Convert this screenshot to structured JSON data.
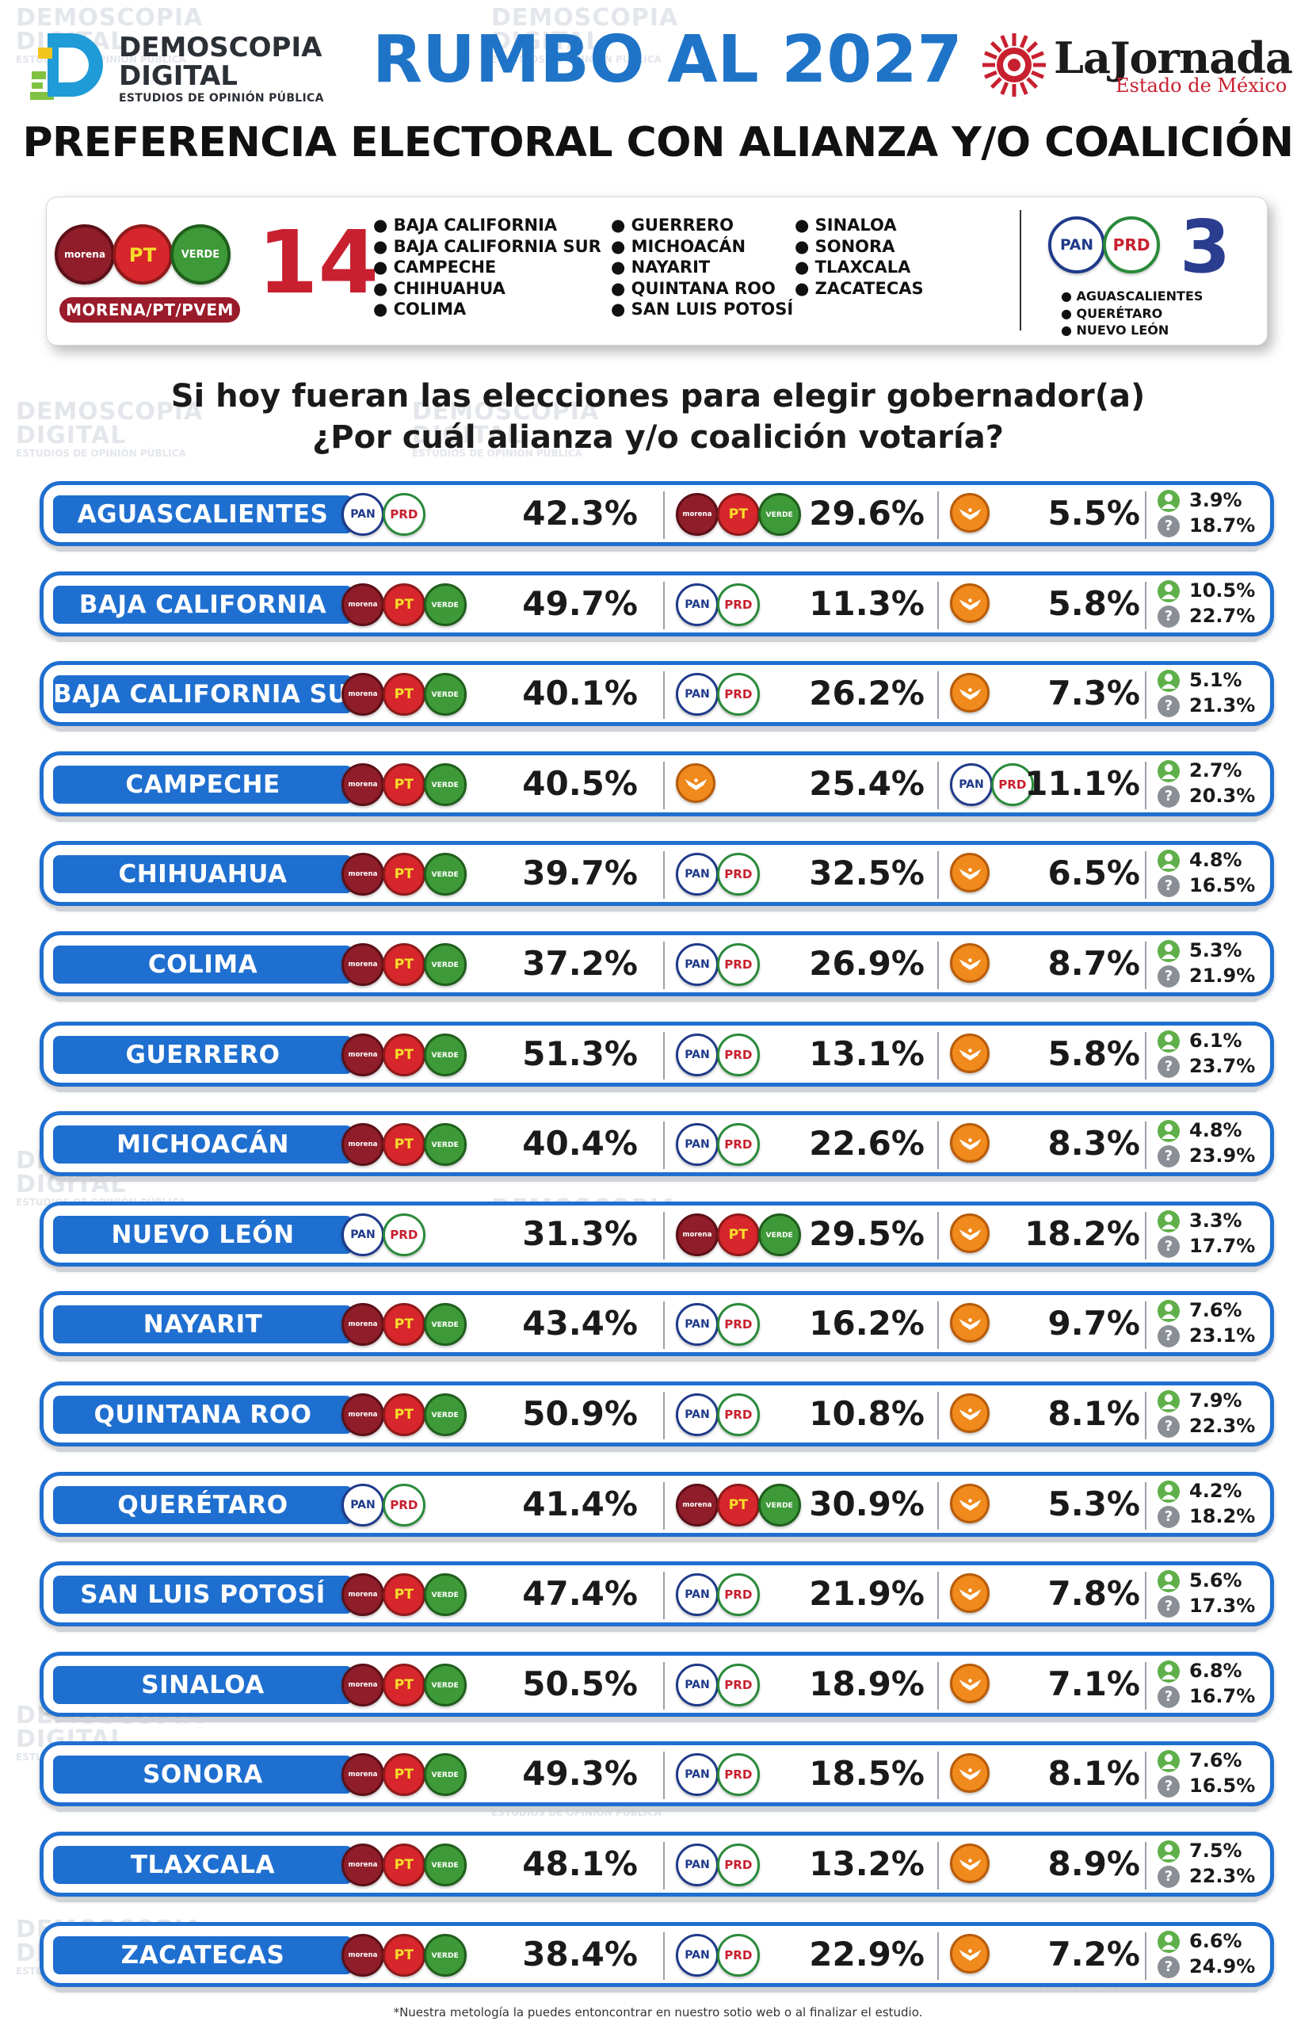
{
  "brand": {
    "name_line1": "DEMOSCOPIA",
    "name_line2": "DIGITAL",
    "tagline": "ESTUDIOS DE OPINIÓN PÚBLICA"
  },
  "title": "RUMBO AL 2027",
  "newspaper": {
    "name": "LaJornada",
    "region": "Estado de México"
  },
  "subtitle": "PREFERENCIA ELECTORAL CON ALIANZA Y/O COALICIÓN",
  "summary": {
    "left_alliance_label": "MORENA/PT/PVEM",
    "left_count": "14",
    "left_states_col1": [
      "BAJA CALIFORNIA",
      "BAJA CALIFORNIA SUR",
      "CAMPECHE",
      "CHIHUAHUA",
      "COLIMA"
    ],
    "left_states_col2": [
      "GUERRERO",
      "MICHOACÁN",
      "NAYARIT",
      "QUINTANA ROO",
      "SAN LUIS POTOSÍ"
    ],
    "left_states_col3": [
      "SINALOA",
      "SONORA",
      "TLAXCALA",
      "ZACATECAS"
    ],
    "right_count": "3",
    "right_states": [
      "AGUASCALIENTES",
      "QUERÉTARO",
      "NUEVO LEÓN"
    ]
  },
  "question_line1": "Si hoy fueran las elecciones para elegir gobernador(a)",
  "question_line2": "¿Por cuál alianza y/o coalición votaría?",
  "logo_text": {
    "morena": "morena",
    "pt": "PT",
    "verde": "VERDE",
    "pan": "PAN",
    "prd": "PRD"
  },
  "colors": {
    "row_blue": "#1f6fd0",
    "morena": "#8f1e2a",
    "pt": "#d7262c",
    "verde": "#3e9a38",
    "pan": "#1f3a8a",
    "prd": "#e8c21c",
    "mc": "#f08a1c"
  },
  "chart_data": {
    "type": "table",
    "columns": [
      "state",
      "first",
      "second",
      "third",
      "other",
      "no_answer"
    ],
    "rows": [
      {
        "state": "AGUASCALIENTES",
        "first": {
          "alliance": "PAN-PRD",
          "pct": "42.3%"
        },
        "second": {
          "alliance": "MORENA-PT-PVEM",
          "pct": "29.6%"
        },
        "third": {
          "alliance": "MC",
          "pct": "5.5%"
        },
        "other": "3.9%",
        "no_answer": "18.7%"
      },
      {
        "state": "BAJA CALIFORNIA",
        "first": {
          "alliance": "MORENA-PT-PVEM",
          "pct": "49.7%"
        },
        "second": {
          "alliance": "PAN-PRD",
          "pct": "11.3%"
        },
        "third": {
          "alliance": "MC",
          "pct": "5.8%"
        },
        "other": "10.5%",
        "no_answer": "22.7%"
      },
      {
        "state": "BAJA CALIFORNIA SUR",
        "first": {
          "alliance": "MORENA-PT-PVEM",
          "pct": "40.1%"
        },
        "second": {
          "alliance": "PAN-PRD",
          "pct": "26.2%"
        },
        "third": {
          "alliance": "MC",
          "pct": "7.3%"
        },
        "other": "5.1%",
        "no_answer": "21.3%"
      },
      {
        "state": "CAMPECHE",
        "first": {
          "alliance": "MORENA-PT-PVEM",
          "pct": "40.5%"
        },
        "second": {
          "alliance": "MC",
          "pct": "25.4%"
        },
        "third": {
          "alliance": "PAN-PRD",
          "pct": "11.1%"
        },
        "other": "2.7%",
        "no_answer": "20.3%"
      },
      {
        "state": "CHIHUAHUA",
        "first": {
          "alliance": "MORENA-PT-PVEM",
          "pct": "39.7%"
        },
        "second": {
          "alliance": "PAN-PRD",
          "pct": "32.5%"
        },
        "third": {
          "alliance": "MC",
          "pct": "6.5%"
        },
        "other": "4.8%",
        "no_answer": "16.5%"
      },
      {
        "state": "COLIMA",
        "first": {
          "alliance": "MORENA-PT-PVEM",
          "pct": "37.2%"
        },
        "second": {
          "alliance": "PAN-PRD",
          "pct": "26.9%"
        },
        "third": {
          "alliance": "MC",
          "pct": "8.7%"
        },
        "other": "5.3%",
        "no_answer": "21.9%"
      },
      {
        "state": "GUERRERO",
        "first": {
          "alliance": "MORENA-PT-PVEM",
          "pct": "51.3%"
        },
        "second": {
          "alliance": "PAN-PRD",
          "pct": "13.1%"
        },
        "third": {
          "alliance": "MC",
          "pct": "5.8%"
        },
        "other": "6.1%",
        "no_answer": "23.7%"
      },
      {
        "state": "MICHOACÁN",
        "first": {
          "alliance": "MORENA-PT-PVEM",
          "pct": "40.4%"
        },
        "second": {
          "alliance": "PAN-PRD",
          "pct": "22.6%"
        },
        "third": {
          "alliance": "MC",
          "pct": "8.3%"
        },
        "other": "4.8%",
        "no_answer": "23.9%"
      },
      {
        "state": "NUEVO LEÓN",
        "first": {
          "alliance": "PAN-PRD",
          "pct": "31.3%"
        },
        "second": {
          "alliance": "MORENA-PT-PVEM",
          "pct": "29.5%"
        },
        "third": {
          "alliance": "MC",
          "pct": "18.2%"
        },
        "other": "3.3%",
        "no_answer": "17.7%"
      },
      {
        "state": "NAYARIT",
        "first": {
          "alliance": "MORENA-PT-PVEM",
          "pct": "43.4%"
        },
        "second": {
          "alliance": "PAN-PRD",
          "pct": "16.2%"
        },
        "third": {
          "alliance": "MC",
          "pct": "9.7%"
        },
        "other": "7.6%",
        "no_answer": "23.1%"
      },
      {
        "state": "QUINTANA ROO",
        "first": {
          "alliance": "MORENA-PT-PVEM",
          "pct": "50.9%"
        },
        "second": {
          "alliance": "PAN-PRD",
          "pct": "10.8%"
        },
        "third": {
          "alliance": "MC",
          "pct": "8.1%"
        },
        "other": "7.9%",
        "no_answer": "22.3%"
      },
      {
        "state": "QUERÉTARO",
        "first": {
          "alliance": "PAN-PRD",
          "pct": "41.4%"
        },
        "second": {
          "alliance": "MORENA-PT-PVEM",
          "pct": "30.9%"
        },
        "third": {
          "alliance": "MC",
          "pct": "5.3%"
        },
        "other": "4.2%",
        "no_answer": "18.2%"
      },
      {
        "state": "SAN LUIS POTOSÍ",
        "first": {
          "alliance": "MORENA-PT-PVEM",
          "pct": "47.4%"
        },
        "second": {
          "alliance": "PAN-PRD",
          "pct": "21.9%"
        },
        "third": {
          "alliance": "MC",
          "pct": "7.8%"
        },
        "other": "5.6%",
        "no_answer": "17.3%"
      },
      {
        "state": "SINALOA",
        "first": {
          "alliance": "MORENA-PT-PVEM",
          "pct": "50.5%"
        },
        "second": {
          "alliance": "PAN-PRD",
          "pct": "18.9%"
        },
        "third": {
          "alliance": "MC",
          "pct": "7.1%"
        },
        "other": "6.8%",
        "no_answer": "16.7%"
      },
      {
        "state": "SONORA",
        "first": {
          "alliance": "MORENA-PT-PVEM",
          "pct": "49.3%"
        },
        "second": {
          "alliance": "PAN-PRD",
          "pct": "18.5%"
        },
        "third": {
          "alliance": "MC",
          "pct": "8.1%"
        },
        "other": "7.6%",
        "no_answer": "16.5%"
      },
      {
        "state": "TLAXCALA",
        "first": {
          "alliance": "MORENA-PT-PVEM",
          "pct": "48.1%"
        },
        "second": {
          "alliance": "PAN-PRD",
          "pct": "13.2%"
        },
        "third": {
          "alliance": "MC",
          "pct": "8.9%"
        },
        "other": "7.5%",
        "no_answer": "22.3%"
      },
      {
        "state": "ZACATECAS",
        "first": {
          "alliance": "MORENA-PT-PVEM",
          "pct": "38.4%"
        },
        "second": {
          "alliance": "PAN-PRD",
          "pct": "22.9%"
        },
        "third": {
          "alliance": "MC",
          "pct": "7.2%"
        },
        "other": "6.6%",
        "no_answer": "24.9%"
      }
    ]
  },
  "footnote": "*Nuestra metología la puedes entoncontrar en nuestro sotio web o al finalizar el estudio."
}
